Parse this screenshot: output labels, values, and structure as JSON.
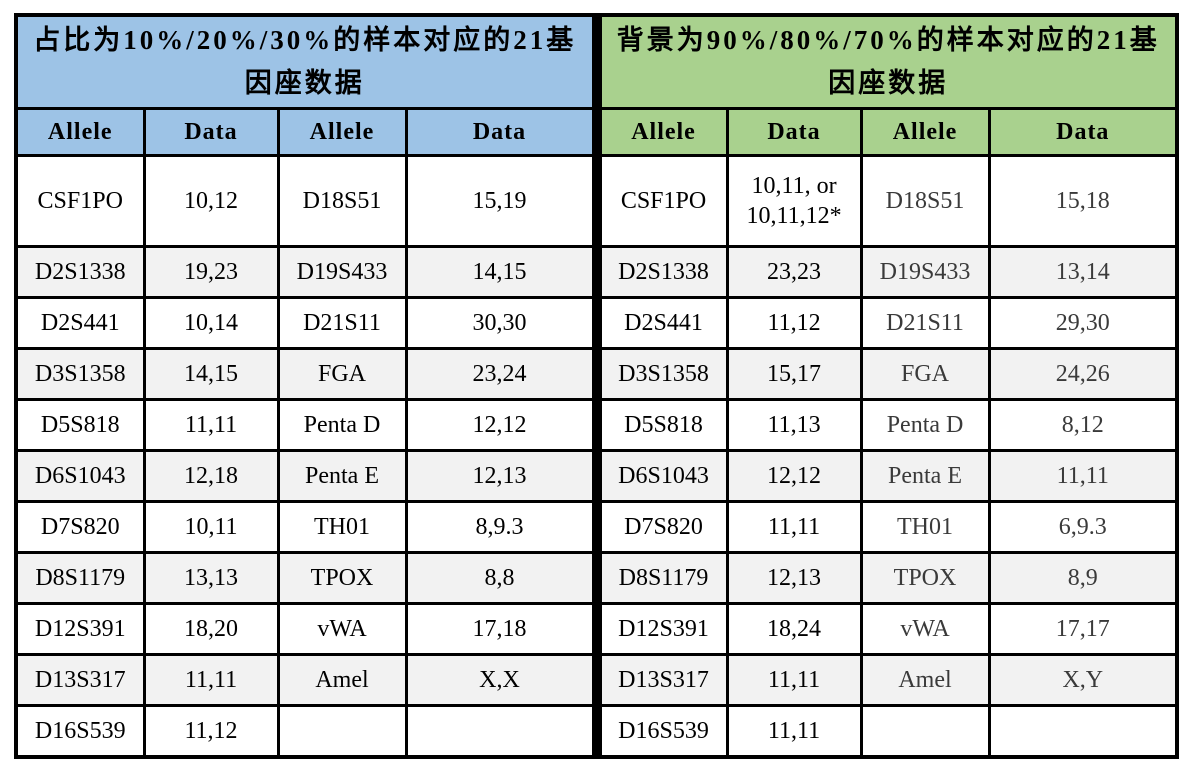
{
  "page": {
    "colors": {
      "left_header_bg": "#9DC3E6",
      "right_header_bg": "#A9D18E",
      "alt_row_bg": "#F2F2F2",
      "border": "#000000"
    },
    "left_table": {
      "title": "占比为10%/20%/30%的样本对应的21基因座数据",
      "columns": [
        "Allele",
        "Data",
        "Allele",
        "Data"
      ],
      "rows": [
        [
          "CSF1PO",
          "10,12",
          "D18S51",
          "15,19"
        ],
        [
          "D2S1338",
          "19,23",
          "D19S433",
          "14,15"
        ],
        [
          "D2S441",
          "10,14",
          "D21S11",
          "30,30"
        ],
        [
          "D3S1358",
          "14,15",
          "FGA",
          "23,24"
        ],
        [
          "D5S818",
          "11,11",
          "Penta D",
          "12,12"
        ],
        [
          "D6S1043",
          "12,18",
          "Penta E",
          "12,13"
        ],
        [
          "D7S820",
          "10,11",
          "TH01",
          "8,9.3"
        ],
        [
          "D8S1179",
          "13,13",
          "TPOX",
          "8,8"
        ],
        [
          "D12S391",
          "18,20",
          "vWA",
          "17,18"
        ],
        [
          "D13S317",
          "11,11",
          "Amel",
          "X,X"
        ],
        [
          "D16S539",
          "11,12",
          "",
          ""
        ]
      ]
    },
    "right_table": {
      "title": "背景为90%/80%/70%的样本对应的21基因座数据",
      "columns": [
        "Allele",
        "Data",
        "Allele",
        "Data"
      ],
      "rows": [
        [
          "CSF1PO",
          "10,11, or\n10,11,12*",
          "D18S51",
          "15,18"
        ],
        [
          "D2S1338",
          "23,23",
          "D19S433",
          "13,14"
        ],
        [
          "D2S441",
          "11,12",
          "D21S11",
          "29,30"
        ],
        [
          "D3S1358",
          "15,17",
          "FGA",
          "24,26"
        ],
        [
          "D5S818",
          "11,13",
          "Penta D",
          "8,12"
        ],
        [
          "D6S1043",
          "12,12",
          "Penta E",
          "11,11"
        ],
        [
          "D7S820",
          "11,11",
          "TH01",
          "6,9.3"
        ],
        [
          "D8S1179",
          "12,13",
          "TPOX",
          "8,9"
        ],
        [
          "D12S391",
          "18,24",
          "vWA",
          "17,17"
        ],
        [
          "D13S317",
          "11,11",
          "Amel",
          "X,Y"
        ],
        [
          "D16S539",
          "11,11",
          "",
          ""
        ]
      ]
    }
  }
}
